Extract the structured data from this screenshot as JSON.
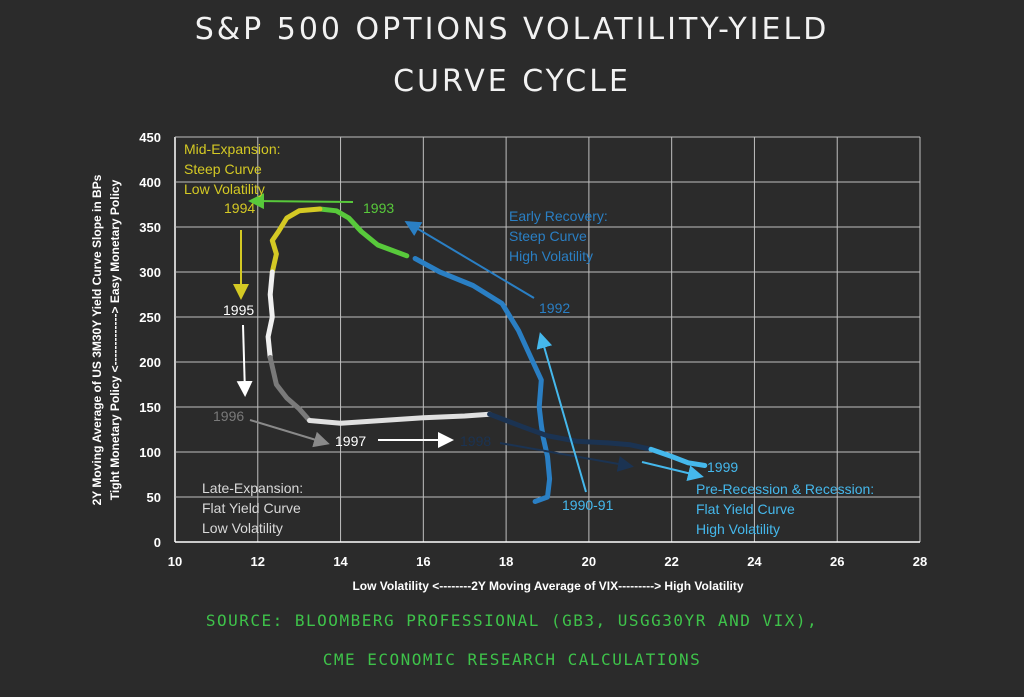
{
  "title": {
    "line1": "S&P 500 OPTIONS VOLATILITY-YIELD",
    "line2": "CURVE CYCLE"
  },
  "source": {
    "line1": "SOURCE: BLOOMBERG PROFESSIONAL (GB3, USGG30YR AND VIX),",
    "line2": "CME ECONOMIC RESEARCH CALCULATIONS"
  },
  "chart_data": {
    "type": "line",
    "xlabel": "Low Volatility <--------2Y Moving Average of VIX---------> High Volatility",
    "ylabel_line1": "2Y Moving Average of US 3M30Y Yield Curve Slope in BPs",
    "ylabel_line2": "Tight Monetary Policy <-------------> Easy Monetary Policy",
    "xlim": [
      10,
      28
    ],
    "ylim": [
      0,
      450
    ],
    "x_ticks": [
      "10",
      "12",
      "14",
      "16",
      "18",
      "20",
      "22",
      "24",
      "26",
      "28"
    ],
    "y_ticks": [
      "0",
      "50",
      "100",
      "150",
      "200",
      "250",
      "300",
      "350",
      "400",
      "450"
    ],
    "grid": true,
    "series": [
      {
        "color": "#2a7fc4",
        "points": [
          [
            18.7,
            45
          ],
          [
            19.0,
            50
          ],
          [
            19.05,
            70
          ],
          [
            19.0,
            95
          ],
          [
            18.9,
            115
          ],
          [
            18.85,
            130
          ],
          [
            18.8,
            150
          ],
          [
            18.85,
            180
          ],
          [
            18.6,
            205
          ],
          [
            18.3,
            235
          ],
          [
            17.9,
            265
          ],
          [
            17.2,
            285
          ],
          [
            16.4,
            300
          ],
          [
            15.8,
            315
          ]
        ]
      },
      {
        "color": "#58c93b",
        "points": [
          [
            15.6,
            318
          ],
          [
            14.9,
            330
          ],
          [
            14.5,
            345
          ],
          [
            14.2,
            360
          ],
          [
            13.9,
            368
          ],
          [
            13.5,
            370
          ]
        ]
      },
      {
        "color": "#d4c924",
        "points": [
          [
            13.5,
            370
          ],
          [
            13.0,
            368
          ],
          [
            12.7,
            360
          ],
          [
            12.5,
            345
          ],
          [
            12.35,
            335
          ],
          [
            12.45,
            320
          ],
          [
            12.35,
            300
          ]
        ]
      },
      {
        "color": "#f0f0f0",
        "points": [
          [
            12.35,
            300
          ],
          [
            12.3,
            275
          ],
          [
            12.35,
            250
          ],
          [
            12.25,
            228
          ],
          [
            12.3,
            205
          ]
        ]
      },
      {
        "color": "#7a7a7a",
        "points": [
          [
            12.3,
            205
          ],
          [
            12.45,
            175
          ],
          [
            12.7,
            160
          ],
          [
            13.0,
            148
          ],
          [
            13.25,
            135
          ]
        ]
      },
      {
        "color": "#e0e0e0",
        "points": [
          [
            13.25,
            135
          ],
          [
            14.0,
            132
          ],
          [
            15.0,
            135
          ],
          [
            16.0,
            138
          ],
          [
            17.0,
            140
          ],
          [
            17.6,
            142
          ]
        ]
      },
      {
        "color": "#1b3352",
        "points": [
          [
            17.6,
            142
          ],
          [
            18.4,
            128
          ],
          [
            19.0,
            118
          ],
          [
            19.7,
            112
          ],
          [
            20.5,
            110
          ],
          [
            21.0,
            108
          ],
          [
            21.5,
            103
          ]
        ]
      },
      {
        "color": "#45b8ec",
        "points": [
          [
            21.5,
            103
          ],
          [
            22.0,
            95
          ],
          [
            22.4,
            88
          ],
          [
            22.8,
            85
          ]
        ]
      }
    ]
  },
  "annotations": {
    "mid_expansion": [
      "Mid-Expansion:",
      "Steep Curve",
      "Low Volatility"
    ],
    "early_recovery": [
      "Early Recovery:",
      "Steep Curve",
      "High Volatility"
    ],
    "late_expansion": [
      "Late-Expansion:",
      "Flat Yield Curve",
      "Low Volatility"
    ],
    "pre_recession": [
      "Pre-Recession & Recession:",
      "Flat Yield Curve",
      "High Volatility"
    ],
    "years": {
      "y1990": "1990-91",
      "y1992": "1992",
      "y1993": "1993",
      "y1994": "1994",
      "y1995": "1995",
      "y1996": "1996",
      "y1997": "1997",
      "y1998": "1998",
      "y1999": "1999"
    }
  },
  "colors": {
    "background": "#2b2b2b",
    "source_text": "#3ec24a",
    "mid_expansion": "#d4c924",
    "early_recovery": "#2a7fc4",
    "late_expansion": "#d9d9d9",
    "pre_recession": "#45b8ec"
  }
}
